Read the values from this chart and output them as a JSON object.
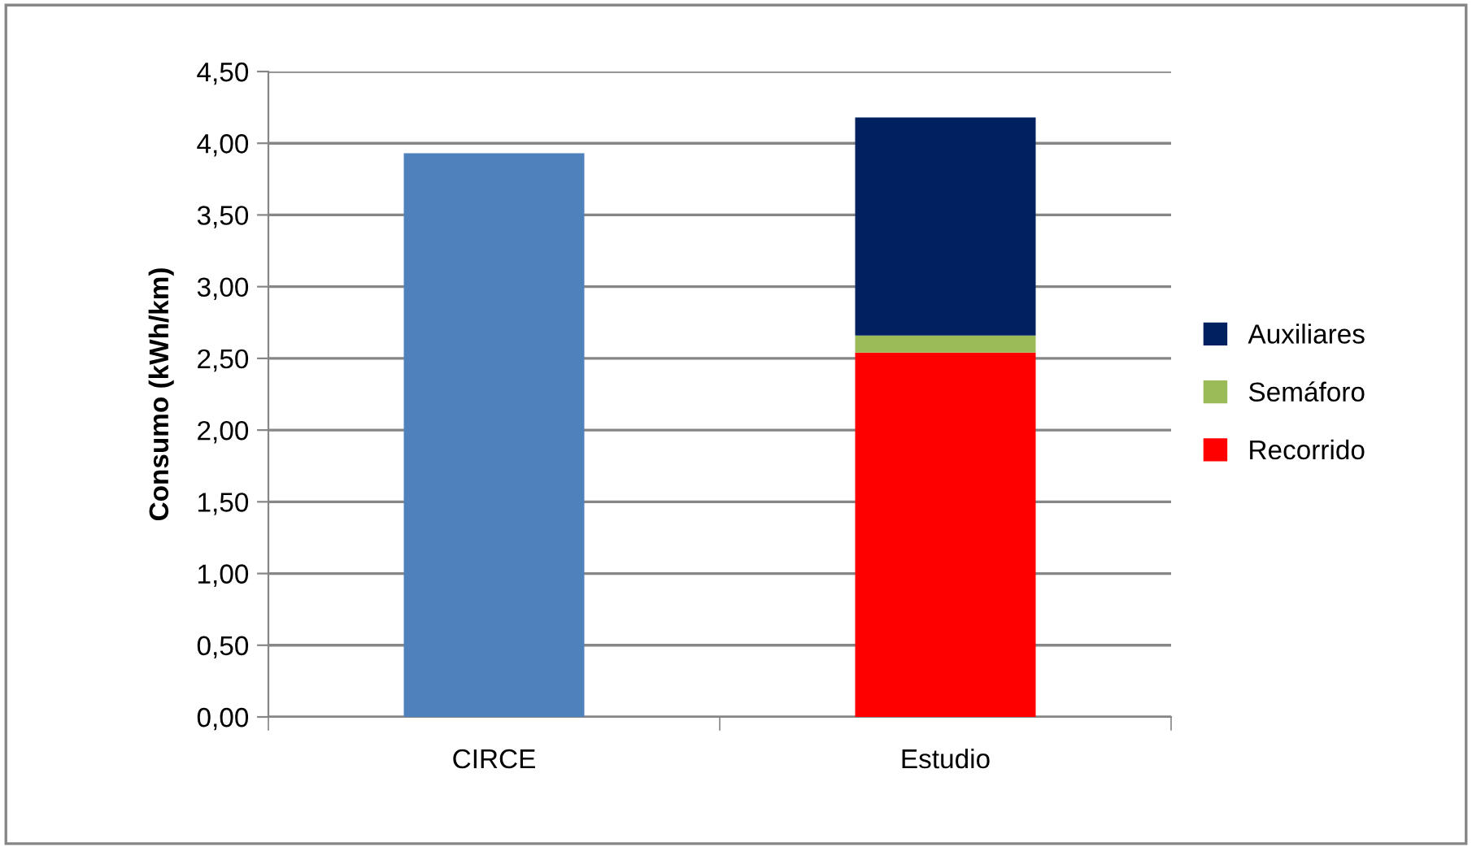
{
  "chart_data": {
    "type": "bar",
    "stacked": true,
    "ylabel": "Consumo (kWh/km)",
    "categories": [
      "CIRCE",
      "Estudio"
    ],
    "series": [
      {
        "color": "#4f81bd",
        "values": [
          3.93,
          null
        ]
      },
      {
        "name": "Recorrido",
        "color": "#ff0000",
        "values": [
          null,
          2.54
        ]
      },
      {
        "name": "Semáforo",
        "color": "#9bbb59",
        "values": [
          null,
          0.12
        ]
      },
      {
        "name": "Auxiliares",
        "color": "#002060",
        "values": [
          null,
          1.52
        ]
      }
    ],
    "ylim": [
      0,
      4.5
    ],
    "yticks": [
      {
        "value": 0,
        "label": "0,00"
      },
      {
        "value": 0.5,
        "label": "0,50"
      },
      {
        "value": 1,
        "label": "1,00"
      },
      {
        "value": 1.5,
        "label": "1,50"
      },
      {
        "value": 2,
        "label": "2,00"
      },
      {
        "value": 2.5,
        "label": "2,50"
      },
      {
        "value": 3,
        "label": "3,00"
      },
      {
        "value": 3.5,
        "label": "3,50"
      },
      {
        "value": 4,
        "label": "4,00"
      },
      {
        "value": 4.5,
        "label": "4,50"
      }
    ],
    "grid": "y",
    "legend": "right"
  }
}
